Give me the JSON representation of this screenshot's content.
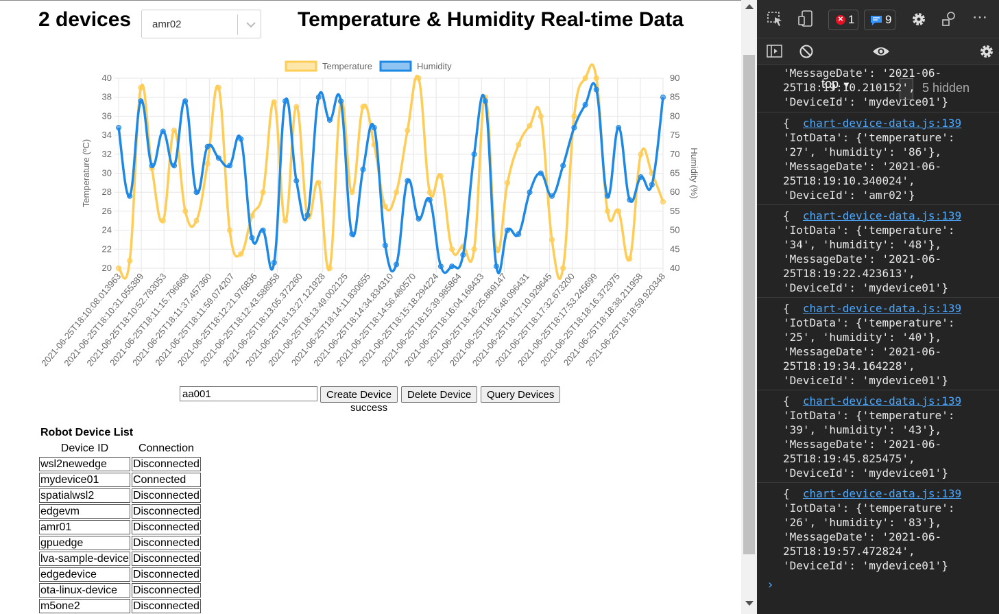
{
  "header": {
    "device_count": "2 devices",
    "selected_device": "amr02",
    "title": "Temperature & Humidity Real-time Data"
  },
  "chart_data": {
    "type": "line",
    "legend": [
      "Temperature",
      "Humidity"
    ],
    "legend_position": "top",
    "y_left": {
      "label": "Temperature (ºC)",
      "range": [
        20,
        40
      ],
      "ticks": [
        "20",
        "22",
        "24",
        "26",
        "28",
        "30",
        "32",
        "34",
        "36",
        "38",
        "40"
      ]
    },
    "y_right": {
      "label": "Humidity (%)",
      "range": [
        40,
        90
      ],
      "ticks": [
        "40",
        "45",
        "50",
        "55",
        "60",
        "65",
        "70",
        "75",
        "80",
        "85",
        "90"
      ]
    },
    "x_tick_labels": [
      "2021-06-25T18:10:08.013963",
      "2021-06-25T18:10:31.055389",
      "2021-06-25T18:10:52.783053",
      "2021-06-25T18:11:15.796668",
      "2021-06-25T18:11:37.457360",
      "2021-06-25T18:11:59.074207",
      "2021-06-25T18:12:21.976836",
      "2021-06-25T18:12:43.588958",
      "2021-06-25T18:13:05.372260",
      "2021-06-25T18:13:27.121928",
      "2021-06-25T18:13:49.002125",
      "2021-06-25T18:14:11.830655",
      "2021-06-25T18:14:34.834310",
      "2021-06-25T18:14:56.480570",
      "2021-06-25T18:15:18.294224",
      "2021-06-25T18:15:39.985864",
      "2021-06-25T18:16:04.168433",
      "2021-06-25T18:16:25.869147",
      "2021-06-25T18:16:48.096431",
      "2021-06-25T18:17:10.929645",
      "2021-06-25T18:17:32.673200",
      "2021-06-25T18:17:53.245699",
      "2021-06-25T18:18:16.372975",
      "2021-06-25T18:18:38.211958",
      "2021-06-25T18:18:59.920348"
    ],
    "grid": true,
    "series": [
      {
        "name": "Temperature",
        "axis": "left",
        "color": "#ffcd56",
        "values": [
          20,
          20.8,
          39,
          30.5,
          25,
          34.5,
          26,
          25,
          31,
          39,
          24,
          21.5,
          25.5,
          28,
          37.5,
          25,
          37,
          25.5,
          29,
          20,
          37.5,
          28,
          37,
          33,
          26.5,
          28,
          34.5,
          40,
          28,
          29.7,
          22,
          22.3,
          22,
          38,
          22,
          29,
          33,
          35,
          36,
          23,
          20,
          36,
          40,
          40,
          26,
          26,
          21,
          32,
          30,
          27
        ]
      },
      {
        "name": "Humidity",
        "axis": "right",
        "color": "#1e88e5",
        "values": [
          77,
          59,
          84,
          67,
          76,
          67,
          84,
          60,
          72,
          69,
          67,
          74,
          48,
          50,
          41.5,
          84,
          63,
          54,
          85,
          79,
          84,
          49,
          66,
          77,
          46,
          41,
          63,
          53,
          58,
          40.5,
          40.5,
          43.5,
          70,
          84,
          40.5,
          50,
          49,
          60,
          65,
          59,
          67,
          77,
          83,
          87,
          59,
          77,
          58,
          64,
          62,
          85
        ]
      }
    ]
  },
  "controls": {
    "device_input_value": "aa001",
    "create_label": "Create Device",
    "delete_label": "Delete Device",
    "query_label": "Query Devices",
    "status_text": "success"
  },
  "device_list": {
    "title": "Robot Device List",
    "headers": [
      "Device ID",
      "Connection"
    ],
    "rows": [
      {
        "id": "wsl2newedge",
        "conn": "Disconnected"
      },
      {
        "id": "mydevice01",
        "conn": "Connected"
      },
      {
        "id": "spatialwsl2",
        "conn": "Disconnected"
      },
      {
        "id": "edgevm",
        "conn": "Disconnected"
      },
      {
        "id": "amr01",
        "conn": "Disconnected"
      },
      {
        "id": "gpuedge",
        "conn": "Disconnected"
      },
      {
        "id": "lva-sample-device",
        "conn": "Disconnected"
      },
      {
        "id": "edgedevice",
        "conn": "Disconnected"
      },
      {
        "id": "ota-linux-device",
        "conn": "Disconnected"
      },
      {
        "id": "m5one2",
        "conn": "Disconnected"
      }
    ]
  },
  "devtools": {
    "error_count": "1",
    "message_count": "9",
    "context": "top",
    "hidden_count": "5 hidden",
    "prompt": "›",
    "first_partial": {
      "lines": [
        "'MessageDate': '2021-06-",
        "25T18:19:10.210152',",
        "'DeviceId': 'mydevice01'}"
      ]
    },
    "logs": [
      {
        "source": "chart-device-data.js:139",
        "lines": [
          "'IotData': {'temperature':",
          "'27', 'humidity': '86'},",
          "'MessageDate': '2021-06-",
          "25T18:19:10.340024',",
          "'DeviceId': 'amr02'}"
        ]
      },
      {
        "source": "chart-device-data.js:139",
        "lines": [
          "'IotData': {'temperature':",
          "'34', 'humidity': '48'},",
          "'MessageDate': '2021-06-",
          "25T18:19:22.423613',",
          "'DeviceId': 'mydevice01'}"
        ]
      },
      {
        "source": "chart-device-data.js:139",
        "lines": [
          "'IotData': {'temperature':",
          "'25', 'humidity': '40'},",
          "'MessageDate': '2021-06-",
          "25T18:19:34.164228',",
          "'DeviceId': 'mydevice01'}"
        ]
      },
      {
        "source": "chart-device-data.js:139",
        "lines": [
          "'IotData': {'temperature':",
          "'39', 'humidity': '43'},",
          "'MessageDate': '2021-06-",
          "25T18:19:45.825475',",
          "'DeviceId': 'mydevice01'}"
        ]
      },
      {
        "source": "chart-device-data.js:139",
        "lines": [
          "'IotData': {'temperature':",
          "'26', 'humidity': '83'},",
          "'MessageDate': '2021-06-",
          "25T18:19:57.472824',",
          "'DeviceId': 'mydevice01'}"
        ]
      }
    ]
  }
}
